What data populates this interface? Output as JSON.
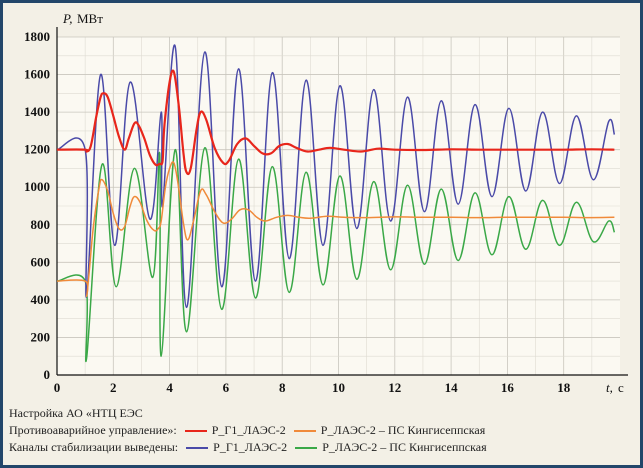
{
  "chart_data": {
    "type": "line",
    "ylabel": "P,",
    "ylabel_unit": "МВт",
    "xlabel": "t,",
    "xlabel_unit": "с",
    "xlim": [
      0,
      20
    ],
    "ylim": [
      0,
      1800
    ],
    "xticks": [
      0,
      2,
      4,
      6,
      8,
      10,
      12,
      14,
      16,
      18
    ],
    "yticks": [
      0,
      200,
      400,
      600,
      800,
      1000,
      1200,
      1400,
      1600,
      1800
    ],
    "grid": true,
    "series": [
      {
        "name": "P_Г1_ЛАЭС-2",
        "group": "Противоаварийное управление",
        "color": "#e8261b",
        "points": [
          [
            0,
            1200
          ],
          [
            1.0,
            1200
          ],
          [
            1.05,
            1190
          ],
          [
            1.2,
            1220
          ],
          [
            1.4,
            1380
          ],
          [
            1.55,
            1480
          ],
          [
            1.65,
            1500
          ],
          [
            1.8,
            1480
          ],
          [
            2.0,
            1380
          ],
          [
            2.2,
            1270
          ],
          [
            2.4,
            1200
          ],
          [
            2.55,
            1260
          ],
          [
            2.75,
            1340
          ],
          [
            2.9,
            1330
          ],
          [
            3.1,
            1260
          ],
          [
            3.3,
            1170
          ],
          [
            3.5,
            1120
          ],
          [
            3.65,
            1125
          ],
          [
            3.75,
            1140
          ],
          [
            3.8,
            1300
          ],
          [
            3.9,
            1450
          ],
          [
            4.0,
            1560
          ],
          [
            4.1,
            1620
          ],
          [
            4.2,
            1580
          ],
          [
            4.35,
            1400
          ],
          [
            4.5,
            1170
          ],
          [
            4.6,
            1080
          ],
          [
            4.75,
            1100
          ],
          [
            4.95,
            1300
          ],
          [
            5.1,
            1400
          ],
          [
            5.3,
            1360
          ],
          [
            5.6,
            1210
          ],
          [
            5.9,
            1130
          ],
          [
            6.1,
            1140
          ],
          [
            6.4,
            1230
          ],
          [
            6.7,
            1260
          ],
          [
            7.0,
            1220
          ],
          [
            7.3,
            1180
          ],
          [
            7.6,
            1180
          ],
          [
            7.9,
            1220
          ],
          [
            8.2,
            1230
          ],
          [
            8.5,
            1210
          ],
          [
            8.9,
            1190
          ],
          [
            9.3,
            1200
          ],
          [
            9.7,
            1210
          ],
          [
            10.2,
            1200
          ],
          [
            10.8,
            1190
          ],
          [
            11.4,
            1205
          ],
          [
            12.0,
            1200
          ],
          [
            13.0,
            1198
          ],
          [
            14.0,
            1202
          ],
          [
            15.0,
            1200
          ],
          [
            16.0,
            1200
          ],
          [
            17.0,
            1200
          ],
          [
            18.0,
            1200
          ],
          [
            19.0,
            1202
          ],
          [
            19.8,
            1200
          ]
        ]
      },
      {
        "name": "P_ЛАЭС-2 – ПС Кингисеппская",
        "group": "Противоаварийное управление",
        "color": "#f08a3a",
        "points": [
          [
            0,
            500
          ],
          [
            1.0,
            500
          ],
          [
            1.05,
            420
          ],
          [
            1.15,
            560
          ],
          [
            1.3,
            800
          ],
          [
            1.5,
            1000
          ],
          [
            1.6,
            1040
          ],
          [
            1.8,
            980
          ],
          [
            2.0,
            860
          ],
          [
            2.2,
            780
          ],
          [
            2.4,
            790
          ],
          [
            2.6,
            900
          ],
          [
            2.75,
            950
          ],
          [
            2.95,
            920
          ],
          [
            3.2,
            820
          ],
          [
            3.45,
            770
          ],
          [
            3.6,
            780
          ],
          [
            3.7,
            820
          ],
          [
            3.85,
            1000
          ],
          [
            4.0,
            1100
          ],
          [
            4.15,
            1130
          ],
          [
            4.3,
            1020
          ],
          [
            4.5,
            800
          ],
          [
            4.65,
            720
          ],
          [
            4.85,
            820
          ],
          [
            5.1,
            980
          ],
          [
            5.3,
            960
          ],
          [
            5.6,
            870
          ],
          [
            5.9,
            810
          ],
          [
            6.2,
            830
          ],
          [
            6.5,
            880
          ],
          [
            6.8,
            880
          ],
          [
            7.1,
            840
          ],
          [
            7.4,
            820
          ],
          [
            7.8,
            840
          ],
          [
            8.2,
            850
          ],
          [
            8.6,
            840
          ],
          [
            9.0,
            835
          ],
          [
            9.6,
            845
          ],
          [
            10.2,
            840
          ],
          [
            11.0,
            838
          ],
          [
            12.0,
            842
          ],
          [
            13.0,
            840
          ],
          [
            14.0,
            840
          ],
          [
            15.0,
            838
          ],
          [
            16.0,
            840
          ],
          [
            17.0,
            840
          ],
          [
            18.0,
            840
          ],
          [
            19.0,
            838
          ],
          [
            19.8,
            840
          ]
        ]
      },
      {
        "name": "P_Г1_ЛАЭС-2",
        "group": "Каналы стабилизации выведены",
        "color": "#4a4aa8",
        "peaks": [
          [
            1.0,
            1200
          ],
          [
            1.05,
            420
          ],
          [
            1.55,
            1600
          ],
          [
            2.05,
            690
          ],
          [
            2.6,
            1560
          ],
          [
            3.3,
            830
          ],
          [
            3.7,
            1400
          ],
          [
            3.75,
            900
          ],
          [
            4.2,
            1750
          ],
          [
            4.6,
            360
          ],
          [
            5.25,
            1720
          ],
          [
            5.85,
            470
          ],
          [
            6.45,
            1630
          ],
          [
            7.05,
            500
          ],
          [
            7.65,
            1610
          ],
          [
            8.25,
            620
          ],
          [
            8.85,
            1570
          ],
          [
            9.45,
            690
          ],
          [
            10.05,
            1540
          ],
          [
            10.65,
            780
          ],
          [
            11.25,
            1520
          ],
          [
            11.85,
            820
          ],
          [
            12.45,
            1480
          ],
          [
            13.05,
            870
          ],
          [
            13.65,
            1460
          ],
          [
            14.25,
            910
          ],
          [
            14.85,
            1440
          ],
          [
            15.45,
            950
          ],
          [
            16.05,
            1420
          ],
          [
            16.65,
            980
          ],
          [
            17.25,
            1400
          ],
          [
            17.85,
            1020
          ],
          [
            18.45,
            1380
          ],
          [
            19.05,
            1040
          ],
          [
            19.6,
            1350
          ],
          [
            19.8,
            1280
          ]
        ],
        "lead_in": [
          [
            0,
            1200
          ],
          [
            1.0,
            1200
          ]
        ]
      },
      {
        "name": "P_ЛАЭС-2 – ПС Кингисеппская",
        "group": "Каналы стабилизации выведены",
        "color": "#3aa847",
        "peaks": [
          [
            1.0,
            500
          ],
          [
            1.05,
            90
          ],
          [
            1.6,
            1120
          ],
          [
            2.1,
            470
          ],
          [
            2.75,
            1100
          ],
          [
            3.4,
            520
          ],
          [
            3.65,
            1180
          ],
          [
            3.7,
            100
          ],
          [
            4.2,
            1200
          ],
          [
            4.6,
            230
          ],
          [
            5.25,
            1210
          ],
          [
            5.85,
            350
          ],
          [
            6.45,
            1150
          ],
          [
            7.05,
            410
          ],
          [
            7.65,
            1110
          ],
          [
            8.25,
            440
          ],
          [
            8.85,
            1080
          ],
          [
            9.45,
            480
          ],
          [
            10.05,
            1060
          ],
          [
            10.65,
            510
          ],
          [
            11.25,
            1030
          ],
          [
            11.85,
            560
          ],
          [
            12.45,
            1010
          ],
          [
            13.05,
            590
          ],
          [
            13.65,
            990
          ],
          [
            14.25,
            610
          ],
          [
            14.85,
            970
          ],
          [
            15.45,
            640
          ],
          [
            16.05,
            950
          ],
          [
            16.65,
            670
          ],
          [
            17.25,
            930
          ],
          [
            17.85,
            690
          ],
          [
            18.45,
            920
          ],
          [
            19.05,
            710
          ],
          [
            19.6,
            820
          ],
          [
            19.8,
            760
          ]
        ],
        "lead_in": [
          [
            0,
            500
          ],
          [
            1.0,
            500
          ]
        ]
      }
    ]
  },
  "legend": {
    "row1_title": "Настройка АО «НТЦ ЕЭС",
    "row2_title": "Противоаварийное управление»:",
    "row3_title": "Каналы стабилизации выведены:",
    "items_row2": [
      {
        "label": "P_Г1_ЛАЭС-2",
        "color": "#e8261b"
      },
      {
        "label": "P_ЛАЭС-2 – ПС Кингисеппская",
        "color": "#f08a3a"
      }
    ],
    "items_row3": [
      {
        "label": "P_Г1_ЛАЭС-2",
        "color": "#4a4aa8"
      },
      {
        "label": "P_ЛАЭС-2 – ПС Кингисеппская",
        "color": "#3aa847"
      }
    ]
  }
}
